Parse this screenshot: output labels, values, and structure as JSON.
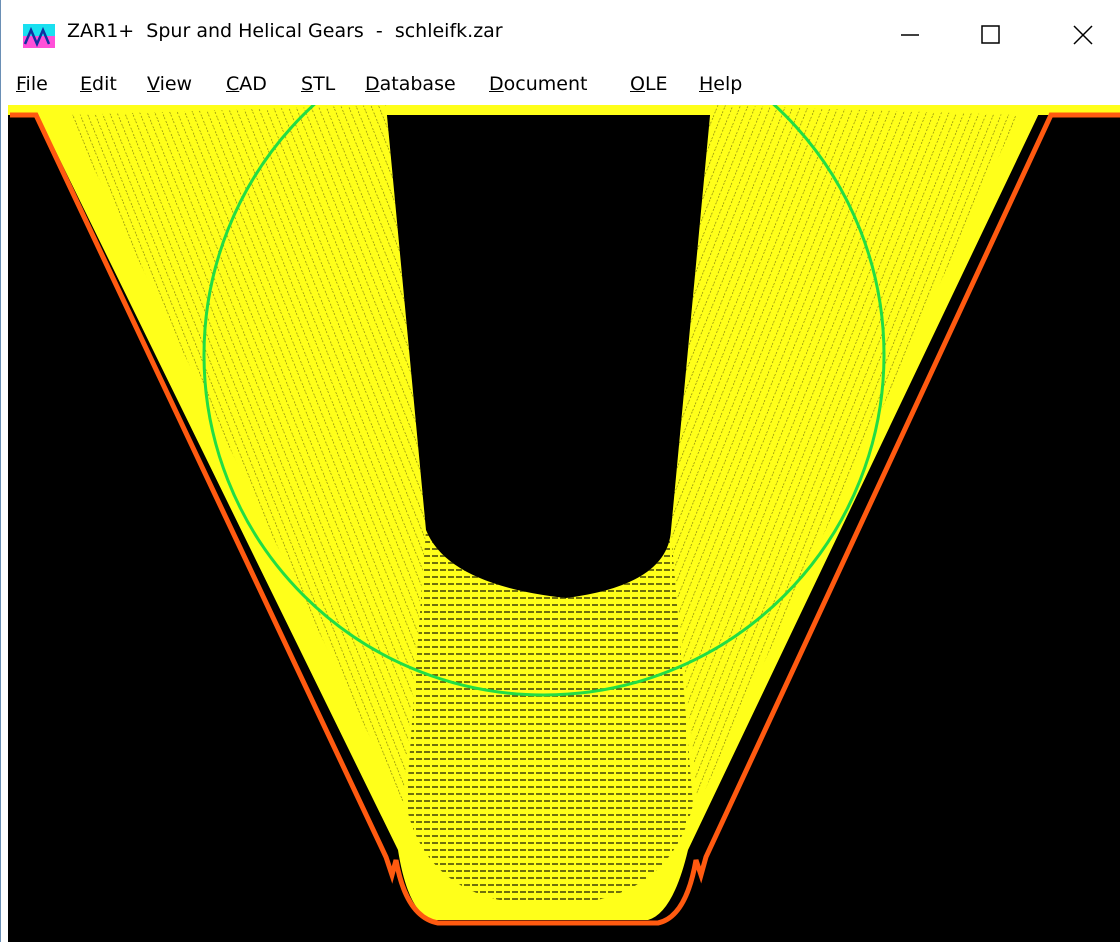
{
  "window": {
    "title": "ZAR1+  Spur and Helical Gears  -  schleifk.zar"
  },
  "menu": [
    "File",
    "Edit",
    "View",
    "CAD",
    "STL",
    "Database",
    "Document",
    "OLE",
    "Help"
  ]
}
